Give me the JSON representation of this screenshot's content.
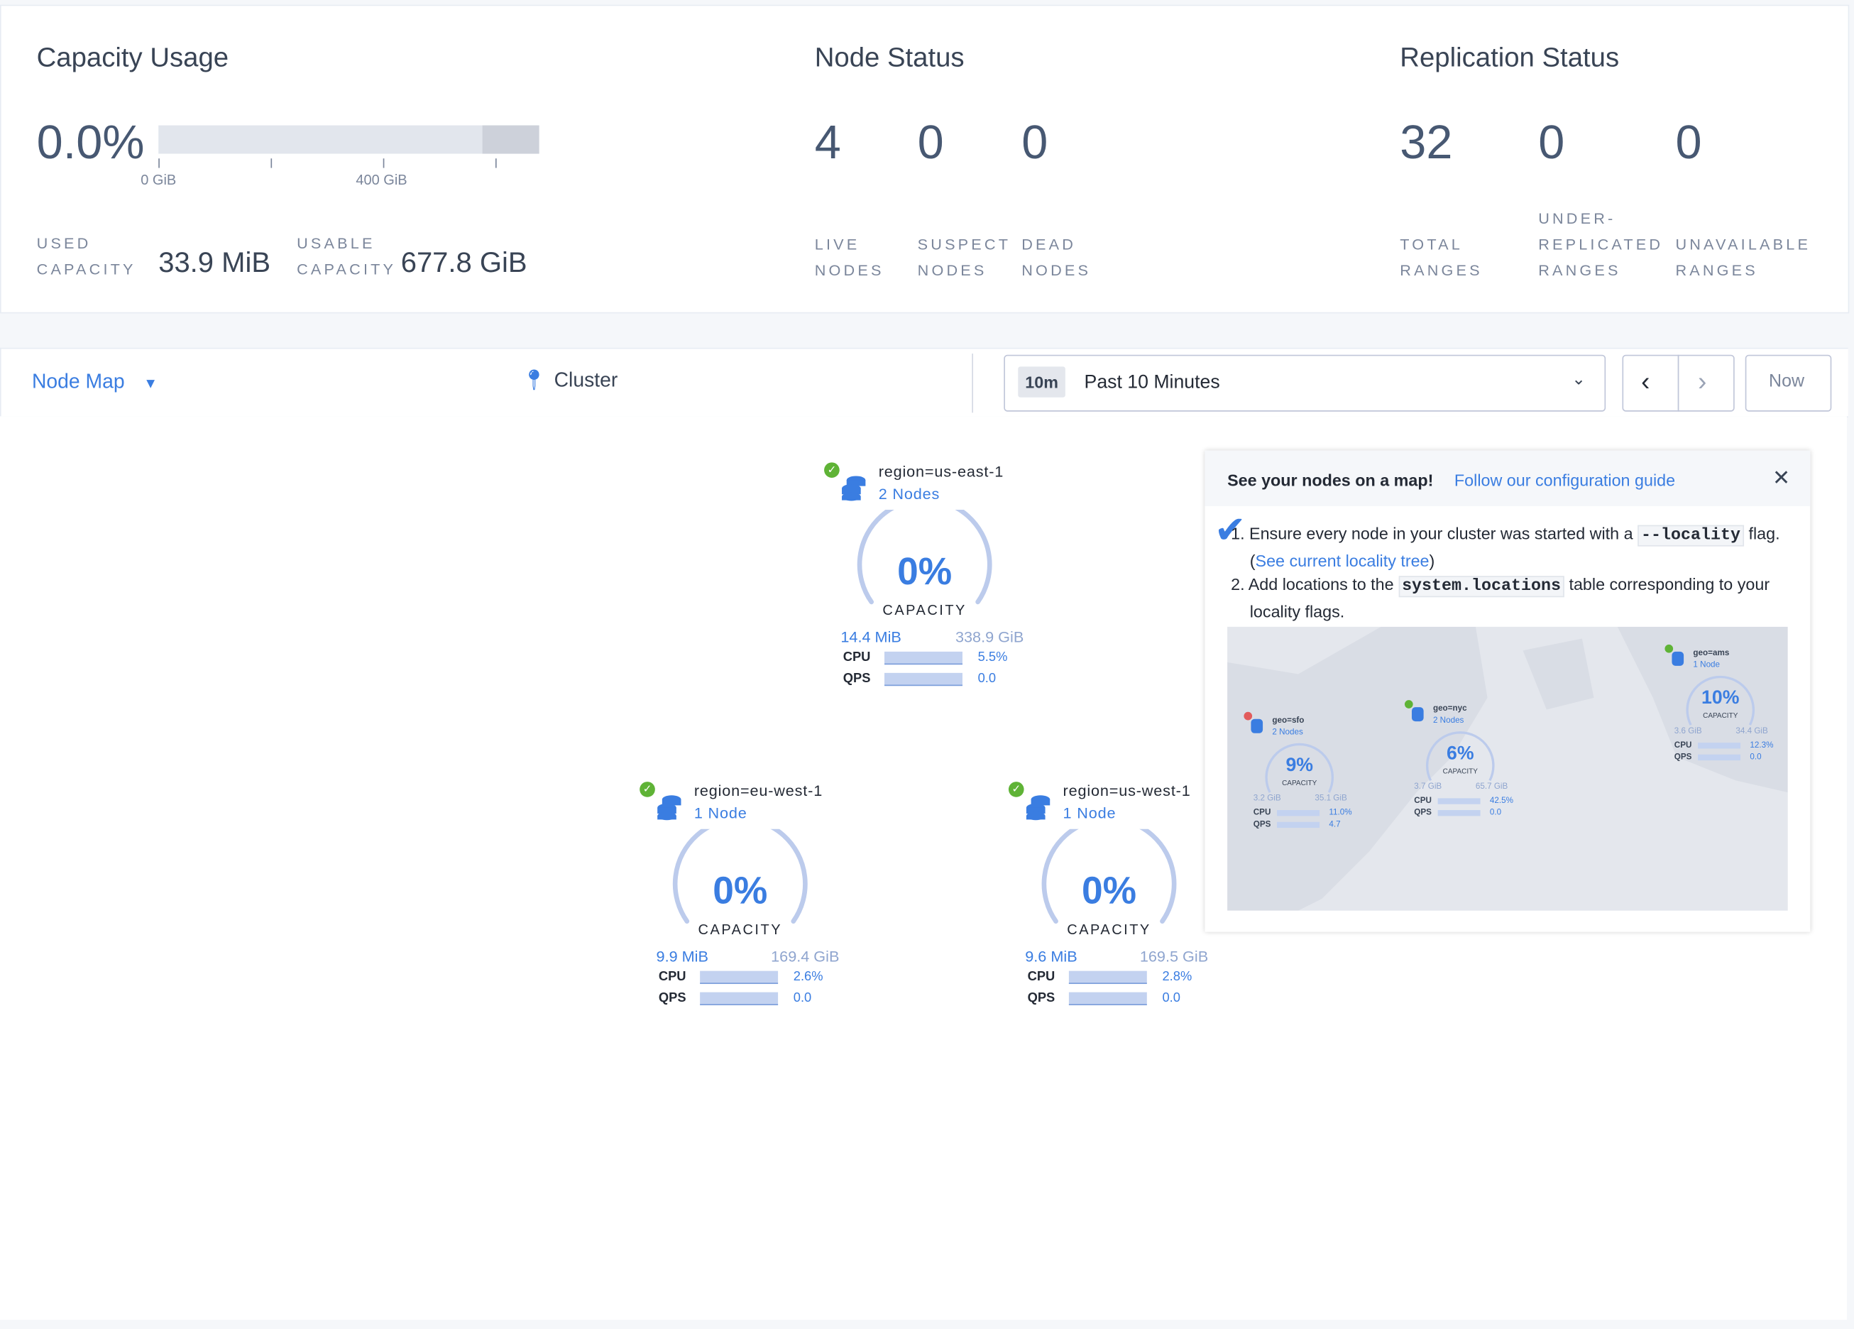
{
  "capacity": {
    "title": "Capacity Usage",
    "percent": "0.0%",
    "percent_value": 0.0,
    "ticks": [
      "0 GiB",
      "400 GiB"
    ],
    "used_label_1": "USED",
    "used_label_2": "CAPACITY",
    "used_value": "33.9 MiB",
    "usable_label_1": "USABLE",
    "usable_label_2": "CAPACITY",
    "usable_value": "677.8 GiB"
  },
  "node_status": {
    "title": "Node Status",
    "items": [
      {
        "value": "4",
        "l1": "LIVE",
        "l2": "NODES"
      },
      {
        "value": "0",
        "l1": "SUSPECT",
        "l2": "NODES"
      },
      {
        "value": "0",
        "l1": "DEAD",
        "l2": "NODES"
      }
    ]
  },
  "replication": {
    "title": "Replication Status",
    "items": [
      {
        "value": "32",
        "l0": "",
        "l1": "TOTAL",
        "l2": "RANGES"
      },
      {
        "value": "0",
        "l0": "UNDER-",
        "l1": "REPLICATED",
        "l2": "RANGES"
      },
      {
        "value": "0",
        "l0": "",
        "l1": "UNAVAILABLE",
        "l2": "RANGES"
      }
    ]
  },
  "toolbar": {
    "view": "Node Map",
    "cluster": "Cluster",
    "time_badge": "10m",
    "time_range": "Past 10 Minutes",
    "now": "Now"
  },
  "nodes": [
    {
      "title": "region=us-east-1",
      "sub": "2 Nodes",
      "pct": "0%",
      "cap": "CAPACITY",
      "used": "14.4 MiB",
      "total": "338.9 GiB",
      "cpu_label": "CPU",
      "cpu": "5.5%",
      "qps_label": "QPS",
      "qps": "0.0"
    },
    {
      "title": "region=eu-west-1",
      "sub": "1 Node",
      "pct": "0%",
      "cap": "CAPACITY",
      "used": "9.9 MiB",
      "total": "169.4 GiB",
      "cpu_label": "CPU",
      "cpu": "2.6%",
      "qps_label": "QPS",
      "qps": "0.0"
    },
    {
      "title": "region=us-west-1",
      "sub": "1 Node",
      "pct": "0%",
      "cap": "CAPACITY",
      "used": "9.6 MiB",
      "total": "169.5 GiB",
      "cpu_label": "CPU",
      "cpu": "2.8%",
      "qps_label": "QPS",
      "qps": "0.0"
    }
  ],
  "popup": {
    "heading": "See your nodes on a map!",
    "link": "Follow our configuration guide",
    "step1_a": "1. Ensure every node in your cluster was started with a ",
    "step1_code": "--locality",
    "step1_b": " flag. (",
    "step1_link": "See current locality tree",
    "step1_c": ")",
    "step2_a": "2. Add locations to the ",
    "step2_code": "system.locations",
    "step2_b": " table corresponding to your locality flags.",
    "map_nodes": [
      {
        "title": "geo=sfo",
        "sub": "2 Nodes",
        "pct": "9%",
        "cap": "CAPACITY",
        "used": "3.2 GiB",
        "total": "35.1 GiB",
        "cpu": "11.0%",
        "qps": "4.7",
        "status": "error"
      },
      {
        "title": "geo=nyc",
        "sub": "2 Nodes",
        "pct": "6%",
        "cap": "CAPACITY",
        "used": "3.7 GiB",
        "total": "65.7 GiB",
        "cpu": "42.5%",
        "qps": "0.0",
        "status": "ok"
      },
      {
        "title": "geo=ams",
        "sub": "1 Node",
        "pct": "10%",
        "cap": "CAPACITY",
        "used": "3.6 GiB",
        "total": "34.4 GiB",
        "cpu": "12.3%",
        "qps": "0.0",
        "status": "ok"
      }
    ],
    "map_cpu_label": "CPU",
    "map_qps_label": "QPS"
  },
  "colors": {
    "accent": "#3a7de1",
    "ok": "#5fb336",
    "error": "#e25b5b",
    "text": "#394455"
  }
}
